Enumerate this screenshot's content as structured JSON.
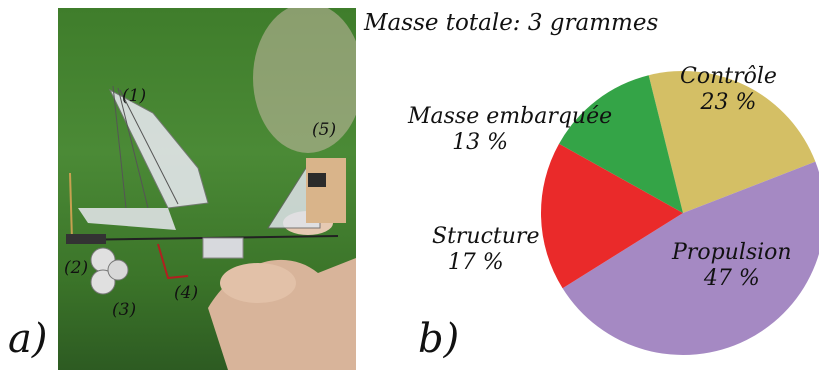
{
  "panel_a": {
    "letter": "a)",
    "callouts": [
      "(1)",
      "(2)",
      "(3)",
      "(4)",
      "(5)"
    ]
  },
  "panel_b": {
    "letter": "b)"
  },
  "chart_data": {
    "type": "pie",
    "title": "Masse totale: 3 grammes",
    "slices": [
      {
        "label": "Contrôle",
        "value": 23,
        "display": "23 %",
        "color": "#d4bf65"
      },
      {
        "label": "Propulsion",
        "value": 47,
        "display": "47 %",
        "color": "#a589c3"
      },
      {
        "label": "Structure",
        "value": 17,
        "display": "17 %",
        "color": "#ea2a2a"
      },
      {
        "label": "Masse embarquée",
        "value": 13,
        "display": "13 %",
        "color": "#34a447"
      }
    ]
  }
}
